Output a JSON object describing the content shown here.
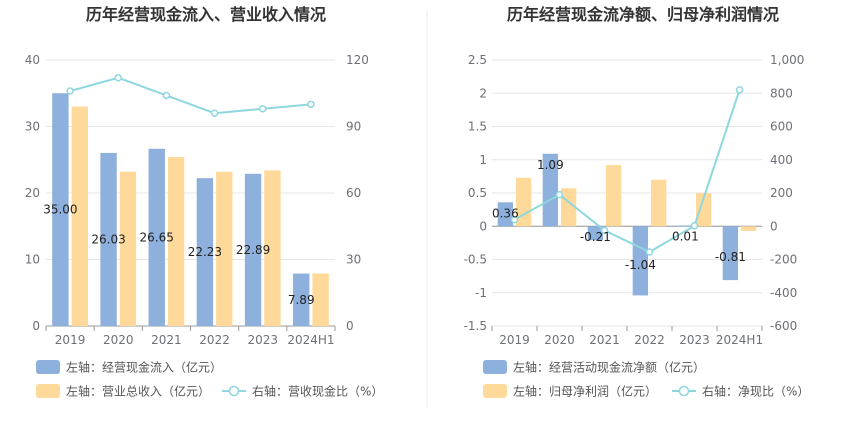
{
  "colors": {
    "bar1": "#8eb0dc",
    "bar2": "#ffd99a",
    "line": "#8ed7de",
    "grid": "#e6e6e6",
    "axis": "#999999",
    "title": "#333333",
    "tick": "#6e7079"
  },
  "chart_data": [
    {
      "type": "bar",
      "title": "历年经营现金流入、营业收入情况",
      "categories": [
        "2019",
        "2020",
        "2021",
        "2022",
        "2023",
        "2024H1"
      ],
      "y_left": {
        "min": 0,
        "max": 40,
        "ticks": [
          "0",
          "10",
          "20",
          "30",
          "40"
        ]
      },
      "y_right": {
        "min": 0,
        "max": 120,
        "ticks": [
          "0",
          "30",
          "60",
          "90",
          "120"
        ]
      },
      "series": [
        {
          "name": "左轴：经营现金流入（亿元）",
          "kind": "bar",
          "axis": "left",
          "color": "#8eb0dc",
          "values": [
            35.0,
            26.03,
            26.65,
            22.23,
            22.89,
            7.89
          ],
          "labels": [
            "35.00",
            "26.03",
            "26.65",
            "22.23",
            "22.89",
            "7.89"
          ]
        },
        {
          "name": "左轴：营业总收入（亿元）",
          "kind": "bar",
          "axis": "left",
          "color": "#ffd99a",
          "values": [
            33.0,
            23.2,
            25.4,
            23.2,
            23.4,
            7.9
          ]
        },
        {
          "name": "右轴：营收现金比（%）",
          "kind": "line",
          "axis": "right",
          "color": "#8ed7de",
          "values": [
            106,
            112,
            104,
            96,
            98,
            100
          ]
        }
      ]
    },
    {
      "type": "bar",
      "title": "历年经营现金流净额、归母净利润情况",
      "categories": [
        "2019",
        "2020",
        "2021",
        "2022",
        "2023",
        "2024H1"
      ],
      "y_left": {
        "min": -1.5,
        "max": 2.5,
        "ticks": [
          "-1.5",
          "-1",
          "-0.5",
          "0",
          "0.5",
          "1",
          "1.5",
          "2",
          "2.5"
        ]
      },
      "y_right": {
        "min": -600,
        "max": 1000,
        "ticks": [
          "-600",
          "-400",
          "-200",
          "0",
          "200",
          "400",
          "600",
          "800",
          "1,000"
        ]
      },
      "series": [
        {
          "name": "左轴：经营活动现金流净额（亿元）",
          "kind": "bar",
          "axis": "left",
          "color": "#8eb0dc",
          "values": [
            0.36,
            1.09,
            -0.21,
            -1.04,
            0.01,
            -0.81
          ],
          "labels": [
            "0.36",
            "1.09",
            "-0.21",
            "-1.04",
            "0.01",
            "-0.81"
          ]
        },
        {
          "name": "左轴：归母净利润（亿元）",
          "kind": "bar",
          "axis": "left",
          "color": "#ffd99a",
          "values": [
            0.73,
            0.57,
            0.92,
            0.7,
            0.5,
            -0.07
          ]
        },
        {
          "name": "右轴：净现比（%）",
          "kind": "line",
          "axis": "right",
          "color": "#8ed7de",
          "values": [
            40,
            190,
            -25,
            -155,
            3,
            820
          ]
        }
      ]
    }
  ]
}
